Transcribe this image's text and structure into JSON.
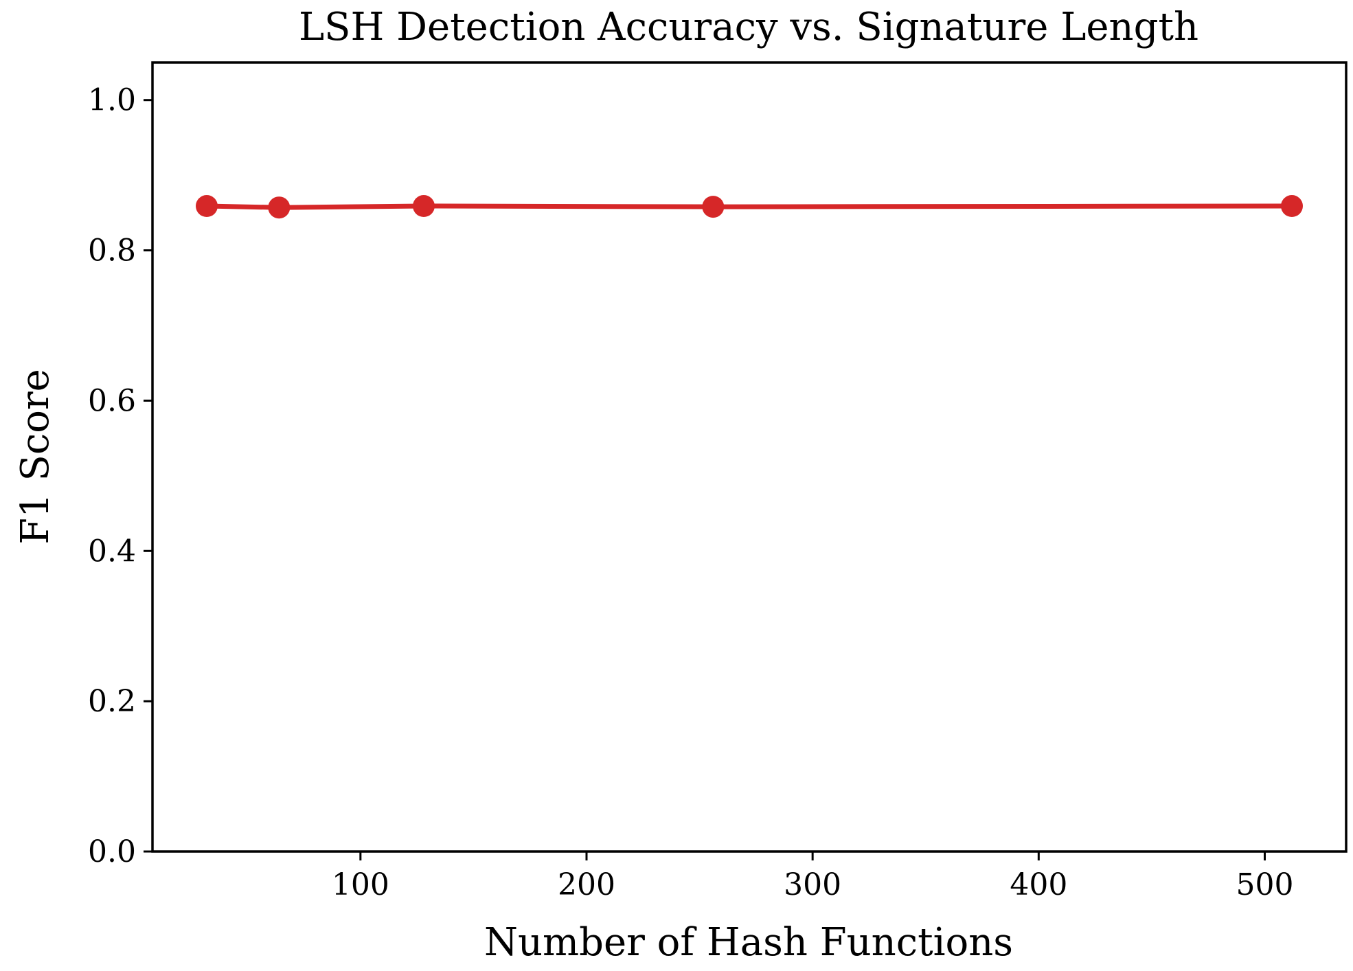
{
  "chart_data": {
    "type": "line",
    "title": "LSH Detection Accuracy vs. Signature Length",
    "xlabel": "Number of Hash Functions",
    "ylabel": "F1 Score",
    "xlim": [
      8,
      536
    ],
    "ylim": [
      0.0,
      1.05
    ],
    "xticks": [
      100,
      200,
      300,
      400,
      500
    ],
    "xtick_labels": [
      "100",
      "200",
      "300",
      "400",
      "500"
    ],
    "yticks": [
      0.0,
      0.2,
      0.4,
      0.6,
      0.8,
      1.0
    ],
    "ytick_labels": [
      "0.0",
      "0.2",
      "0.4",
      "0.6",
      "0.8",
      "1.0"
    ],
    "grid": false,
    "series": [
      {
        "x": [
          32,
          64,
          128,
          256,
          512
        ],
        "y": [
          0.859,
          0.857,
          0.859,
          0.858,
          0.859
        ],
        "color": "#d62728",
        "marker": "circle"
      }
    ]
  }
}
